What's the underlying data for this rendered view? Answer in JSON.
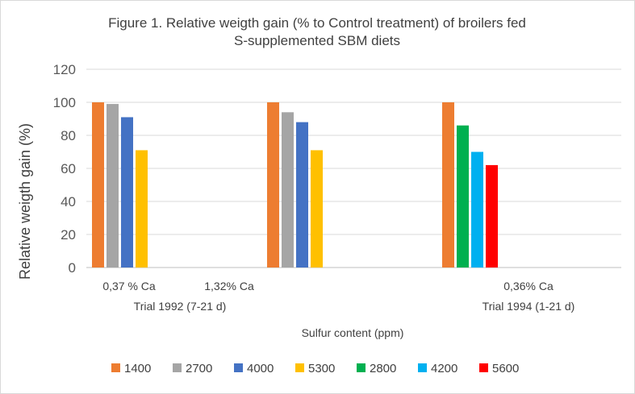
{
  "chart_data": {
    "type": "bar",
    "title_lines": [
      "Figure 1. Relative weigth gain (% to Control treatment) of broilers fed",
      "S-supplemented SBM diets"
    ],
    "ylabel": "Relative weigth gain (%)",
    "xlabel": "Sulfur content (ppm)",
    "ylim": [
      0,
      120
    ],
    "yticks": [
      0,
      20,
      40,
      60,
      80,
      100,
      120
    ],
    "gridlines": true,
    "legend_position": "bottom",
    "category_labels": [
      {
        "name": "0,37 % Ca",
        "trial": "Trial 1992 (7-21 d)"
      },
      {
        "name": "1,32% Ca",
        "trial": ""
      },
      {
        "name": "0,36% Ca",
        "trial": "Trial 1994 (1-21 d)"
      }
    ],
    "series": [
      {
        "name": "1400",
        "color": "#ED7D31",
        "values": [
          100,
          100,
          100
        ]
      },
      {
        "name": "2700",
        "color": "#A5A5A5",
        "values": [
          99,
          94,
          null
        ]
      },
      {
        "name": "4000",
        "color": "#4472C4",
        "values": [
          91,
          88,
          null
        ]
      },
      {
        "name": "5300",
        "color": "#FFC000",
        "values": [
          71,
          71,
          null
        ]
      },
      {
        "name": "2800",
        "color": "#00B050",
        "values": [
          null,
          null,
          86
        ]
      },
      {
        "name": "4200",
        "color": "#00B0F0",
        "values": [
          null,
          null,
          70
        ]
      },
      {
        "name": "5600",
        "color": "#FF0000",
        "values": [
          null,
          null,
          62
        ]
      }
    ]
  }
}
